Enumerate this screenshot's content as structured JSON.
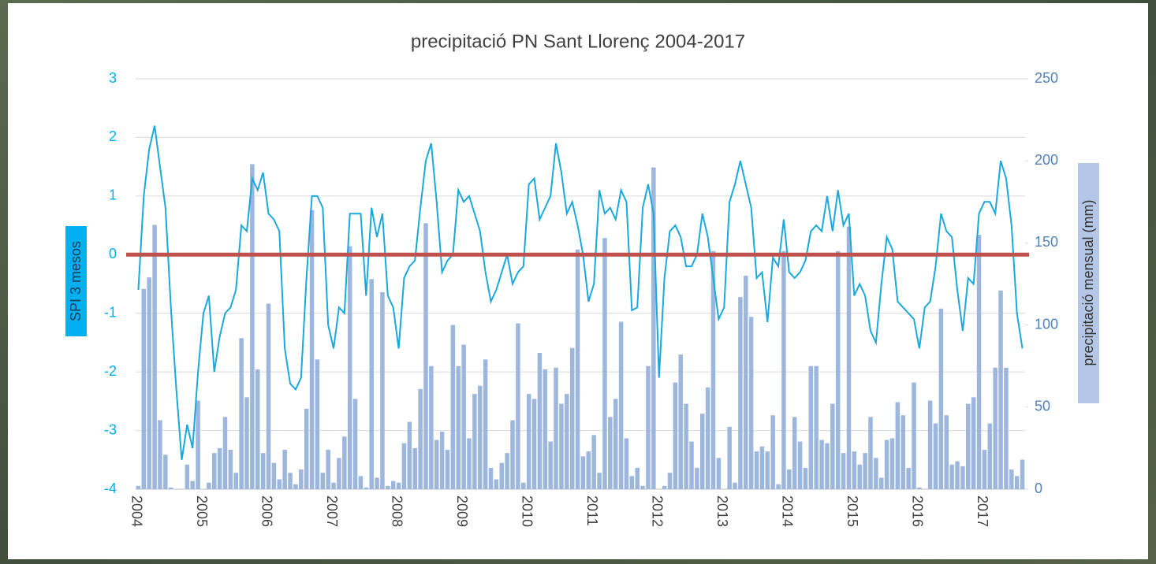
{
  "chart_data": {
    "type": "combo",
    "title": "precipitació PN Sant Llorenç 2004-2017",
    "ylabel": "SPI 3 mesos",
    "y2label": "precipitació mensual (mm)",
    "categories": [
      "2004",
      null,
      null,
      null,
      null,
      null,
      null,
      null,
      null,
      null,
      null,
      null,
      "2005",
      null,
      null,
      null,
      null,
      null,
      null,
      null,
      null,
      null,
      null,
      null,
      "2006",
      null,
      null,
      null,
      null,
      null,
      null,
      null,
      null,
      null,
      null,
      null,
      "2007",
      null,
      null,
      null,
      null,
      null,
      null,
      null,
      null,
      null,
      null,
      null,
      "2008",
      null,
      null,
      null,
      null,
      null,
      null,
      null,
      null,
      null,
      null,
      null,
      "2009",
      null,
      null,
      null,
      null,
      null,
      null,
      null,
      null,
      null,
      null,
      null,
      "2010",
      null,
      null,
      null,
      null,
      null,
      null,
      null,
      null,
      null,
      null,
      null,
      "2011",
      null,
      null,
      null,
      null,
      null,
      null,
      null,
      null,
      null,
      null,
      null,
      "2012",
      null,
      null,
      null,
      null,
      null,
      null,
      null,
      null,
      null,
      null,
      null,
      "2013",
      null,
      null,
      null,
      null,
      null,
      null,
      null,
      null,
      null,
      null,
      null,
      "2014",
      null,
      null,
      null,
      null,
      null,
      null,
      null,
      null,
      null,
      null,
      null,
      "2015",
      null,
      null,
      null,
      null,
      null,
      null,
      null,
      null,
      null,
      null,
      null,
      "2016",
      null,
      null,
      null,
      null,
      null,
      null,
      null,
      null,
      null,
      null,
      null,
      "2017",
      null,
      null,
      null,
      null,
      null,
      null,
      null
    ],
    "series": [
      {
        "type": "bar",
        "axis": "y2",
        "color": "#9db6dd",
        "values": [
          2,
          122,
          129,
          161,
          42,
          21,
          1,
          0,
          0,
          15,
          5,
          54,
          0,
          4,
          22,
          25,
          44,
          24,
          10,
          92,
          56,
          198,
          73,
          22,
          113,
          16,
          6,
          24,
          10,
          3,
          12,
          49,
          170,
          79,
          10,
          24,
          4,
          19,
          32,
          148,
          55,
          8,
          1,
          128,
          7,
          120,
          2,
          5,
          4,
          28,
          41,
          25,
          61,
          162,
          75,
          30,
          35,
          24,
          100,
          75,
          88,
          31,
          58,
          63,
          79,
          13,
          6,
          16,
          22,
          42,
          101,
          4,
          58,
          55,
          83,
          73,
          29,
          74,
          52,
          58,
          86,
          146,
          20,
          23,
          33,
          10,
          153,
          44,
          55,
          102,
          31,
          8,
          13,
          2,
          75,
          196,
          0,
          2,
          10,
          65,
          82,
          52,
          29,
          13,
          46,
          62,
          145,
          19,
          0,
          38,
          4,
          117,
          130,
          105,
          23,
          26,
          23,
          45,
          3,
          145,
          12,
          44,
          29,
          13,
          75,
          75,
          30,
          28,
          52,
          145,
          22,
          160,
          23,
          15,
          22,
          44,
          19,
          7,
          30,
          31,
          53,
          45,
          13,
          65,
          1,
          0,
          54,
          40,
          110,
          45,
          15,
          17,
          14,
          52,
          56,
          155,
          24,
          40,
          74,
          121,
          74,
          12,
          8,
          18
        ]
      },
      {
        "type": "line",
        "axis": "y",
        "color": "#1aa8de",
        "values": [
          -0.6,
          1.0,
          1.8,
          2.2,
          1.5,
          0.8,
          -0.9,
          -2.3,
          -3.5,
          -2.9,
          -3.3,
          -2.0,
          -1.0,
          -0.7,
          -2.0,
          -1.4,
          -1.0,
          -0.9,
          -0.6,
          0.5,
          0.4,
          1.3,
          1.1,
          1.4,
          0.7,
          0.6,
          0.4,
          -1.6,
          -2.2,
          -2.3,
          -2.1,
          -0.4,
          1.0,
          1.0,
          0.8,
          -1.2,
          -1.6,
          -0.9,
          -1.0,
          0.7,
          0.7,
          0.7,
          -0.7,
          0.8,
          0.3,
          0.7,
          -0.7,
          -0.9,
          -1.6,
          -0.4,
          -0.2,
          -0.1,
          0.8,
          1.6,
          1.9,
          0.9,
          -0.3,
          -0.1,
          0.0,
          1.1,
          0.9,
          1.0,
          0.7,
          0.4,
          -0.3,
          -0.8,
          -0.6,
          -0.3,
          0.0,
          -0.5,
          -0.3,
          -0.2,
          1.2,
          1.3,
          0.6,
          0.8,
          1.0,
          1.9,
          1.4,
          0.7,
          0.9,
          0.5,
          0.0,
          -0.8,
          -0.5,
          1.1,
          0.7,
          0.8,
          0.6,
          1.1,
          0.9,
          -0.95,
          -0.9,
          0.8,
          1.2,
          0.7,
          -2.1,
          -0.4,
          0.4,
          0.5,
          0.3,
          -0.2,
          -0.2,
          0.0,
          0.7,
          0.3,
          -0.4,
          -1.1,
          -0.9,
          0.9,
          1.2,
          1.6,
          1.2,
          0.8,
          -0.4,
          -0.3,
          -1.15,
          -0.05,
          -0.2,
          0.6,
          -0.3,
          -0.4,
          -0.3,
          -0.1,
          0.4,
          0.5,
          0.4,
          1.0,
          0.4,
          1.1,
          0.5,
          0.7,
          -0.7,
          -0.5,
          -0.7,
          -1.3,
          -1.5,
          -0.5,
          0.3,
          0.1,
          -0.8,
          -0.9,
          -1.0,
          -1.1,
          -1.6,
          -0.9,
          -0.8,
          -0.2,
          0.7,
          0.4,
          0.3,
          -0.6,
          -1.3,
          -0.4,
          -0.5,
          0.7,
          0.9,
          0.9,
          0.7,
          1.6,
          1.3,
          0.5,
          -1.0,
          -1.6
        ]
      }
    ],
    "ylim": [
      -4,
      3
    ],
    "yticks": [
      -4,
      -3,
      -2,
      -1,
      0,
      1,
      2,
      3
    ],
    "y2lim": [
      0,
      250
    ],
    "y2ticks": [
      0,
      50,
      100,
      150,
      200,
      250
    ],
    "grid": true,
    "hline": {
      "value": 0,
      "color": "#c0504d"
    }
  }
}
